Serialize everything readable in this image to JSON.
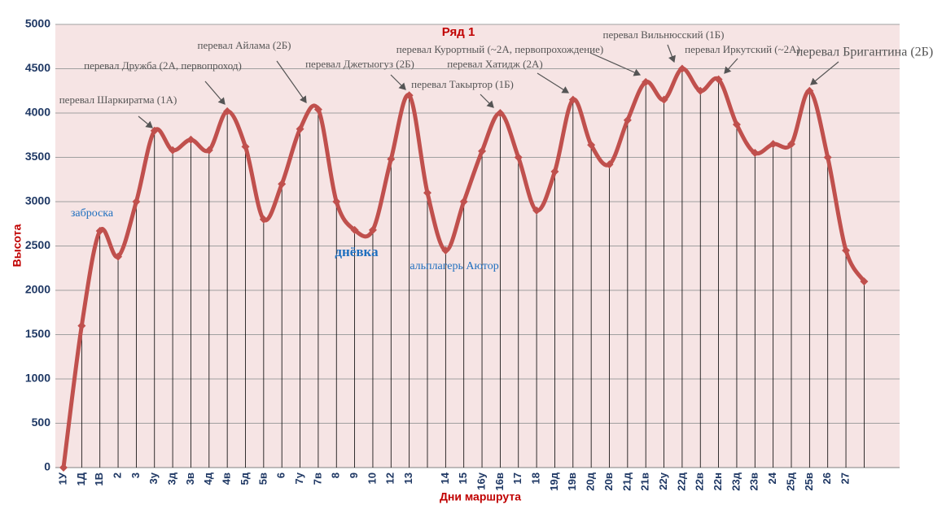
{
  "chart_data": {
    "type": "line",
    "x_label": "Дни маршрута",
    "y_label": "Высота",
    "categories": [
      "1У",
      "1Д",
      "1В",
      "2",
      "3",
      "3у",
      "3д",
      "3в",
      "4д",
      "4в",
      "5д",
      "5в",
      "6",
      "7у",
      "7в",
      "8",
      "9",
      "10",
      "12",
      "13",
      null,
      "14",
      "15",
      "16у",
      "16в",
      "17",
      "18",
      "19д",
      "19в",
      "20д",
      "20в",
      "21д",
      "21в",
      "22у",
      "22д",
      "22в",
      "22н",
      "23д",
      "23в",
      "24",
      "25д",
      "25в",
      "26",
      "27",
      null
    ],
    "series": [
      {
        "name": "Ряд 1",
        "color": "#c0504d",
        "values": [
          0,
          1600,
          2670,
          2380,
          3000,
          3800,
          3580,
          3700,
          3580,
          4020,
          3620,
          2800,
          3200,
          3820,
          4040,
          3000,
          2680,
          2680,
          3480,
          4200,
          3100,
          2450,
          3000,
          3570,
          4000,
          3500,
          2900,
          3340,
          4150,
          3640,
          3420,
          3920,
          4350,
          4150,
          4500,
          4250,
          4380,
          3870,
          3550,
          3650,
          3650,
          4250,
          3500,
          2450,
          2100
        ]
      }
    ],
    "ylim": [
      0,
      5000
    ],
    "yticks": [
      0,
      500,
      1000,
      1500,
      2000,
      2500,
      3000,
      3500,
      4000,
      4500,
      5000
    ],
    "grid": true,
    "annotations": [
      "перевал Шаркиратма (1А)",
      "перевал Дружба (2А, первопроход)",
      "перевал Айлама (2Б)",
      "перевал Джетыогуз (2Б)",
      "перевал Такыртор (1Б)",
      "перевал Курортный (~2А, первопрохождение)",
      "перевал Хатидж (2А)",
      "перевал Вильнюсский (1Б)",
      "перевал Иркутский (~2А)",
      "перевал Бригантина (2Б)",
      "заброска",
      "днёвка",
      "альплагерь Аютор"
    ]
  }
}
